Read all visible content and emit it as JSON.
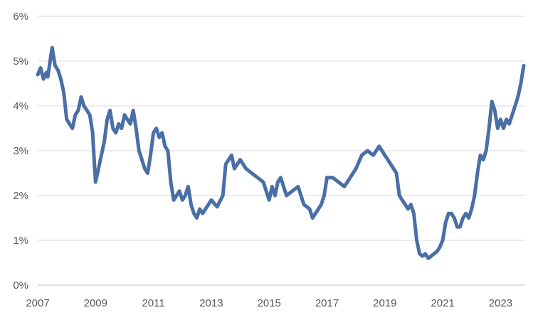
{
  "chart_data": {
    "type": "line",
    "title": "",
    "xlabel": "",
    "ylabel": "",
    "grid": true,
    "legend": "none",
    "xlim": [
      2007.0,
      2023.85
    ],
    "ylim": [
      0,
      6
    ],
    "x_ticks": [
      {
        "value": 2007,
        "label": "2007"
      },
      {
        "value": 2009,
        "label": "2009"
      },
      {
        "value": 2011,
        "label": "2011"
      },
      {
        "value": 2013,
        "label": "2013"
      },
      {
        "value": 2015,
        "label": "2015"
      },
      {
        "value": 2017,
        "label": "2017"
      },
      {
        "value": 2019,
        "label": "2019"
      },
      {
        "value": 2021,
        "label": "2021"
      },
      {
        "value": 2023,
        "label": "2023"
      }
    ],
    "y_ticks": [
      {
        "value": 0,
        "label": "0%"
      },
      {
        "value": 1,
        "label": "1%"
      },
      {
        "value": 2,
        "label": "2%"
      },
      {
        "value": 3,
        "label": "3%"
      },
      {
        "value": 4,
        "label": "4%"
      },
      {
        "value": 5,
        "label": "5%"
      },
      {
        "value": 6,
        "label": "6%"
      }
    ],
    "series": [
      {
        "color": "#4a6fa5",
        "x": [
          2007.0,
          2007.1,
          2007.2,
          2007.3,
          2007.35,
          2007.45,
          2007.5,
          2007.6,
          2007.7,
          2007.8,
          2007.9,
          2008.0,
          2008.1,
          2008.2,
          2008.3,
          2008.4,
          2008.5,
          2008.6,
          2008.7,
          2008.8,
          2008.9,
          2008.95,
          2009.0,
          2009.1,
          2009.2,
          2009.3,
          2009.4,
          2009.5,
          2009.6,
          2009.7,
          2009.8,
          2009.9,
          2010.0,
          2010.1,
          2010.2,
          2010.3,
          2010.4,
          2010.5,
          2010.6,
          2010.7,
          2010.8,
          2010.9,
          2011.0,
          2011.1,
          2011.2,
          2011.3,
          2011.4,
          2011.5,
          2011.6,
          2011.7,
          2011.8,
          2011.9,
          2012.0,
          2012.1,
          2012.2,
          2012.3,
          2012.4,
          2012.5,
          2012.6,
          2012.7,
          2012.8,
          2012.9,
          2013.0,
          2013.2,
          2013.4,
          2013.5,
          2013.6,
          2013.7,
          2013.8,
          2014.0,
          2014.2,
          2014.4,
          2014.6,
          2014.8,
          2015.0,
          2015.1,
          2015.2,
          2015.3,
          2015.4,
          2015.5,
          2015.6,
          2015.8,
          2016.0,
          2016.2,
          2016.4,
          2016.5,
          2016.6,
          2016.8,
          2016.9,
          2017.0,
          2017.2,
          2017.4,
          2017.6,
          2017.8,
          2018.0,
          2018.2,
          2018.4,
          2018.6,
          2018.8,
          2018.9,
          2019.0,
          2019.2,
          2019.4,
          2019.5,
          2019.6,
          2019.8,
          2019.9,
          2020.0,
          2020.1,
          2020.2,
          2020.3,
          2020.4,
          2020.5,
          2020.6,
          2020.7,
          2020.8,
          2020.9,
          2021.0,
          2021.1,
          2021.2,
          2021.3,
          2021.4,
          2021.5,
          2021.6,
          2021.7,
          2021.8,
          2021.9,
          2022.0,
          2022.1,
          2022.2,
          2022.3,
          2022.4,
          2022.5,
          2022.6,
          2022.7,
          2022.8,
          2022.9,
          2023.0,
          2023.1,
          2023.2,
          2023.3,
          2023.4,
          2023.5,
          2023.6,
          2023.7,
          2023.75,
          2023.8
        ],
        "y": [
          4.7,
          4.85,
          4.6,
          4.75,
          4.65,
          5.1,
          5.3,
          4.9,
          4.8,
          4.6,
          4.3,
          3.7,
          3.6,
          3.5,
          3.8,
          3.9,
          4.2,
          4.0,
          3.9,
          3.8,
          3.4,
          2.8,
          2.3,
          2.6,
          2.9,
          3.2,
          3.7,
          3.9,
          3.5,
          3.4,
          3.6,
          3.5,
          3.8,
          3.7,
          3.6,
          3.9,
          3.5,
          3.0,
          2.8,
          2.6,
          2.5,
          2.9,
          3.4,
          3.5,
          3.3,
          3.4,
          3.1,
          3.0,
          2.3,
          1.9,
          2.0,
          2.1,
          1.9,
          2.0,
          2.2,
          1.8,
          1.6,
          1.5,
          1.7,
          1.6,
          1.7,
          1.8,
          1.9,
          1.75,
          2.0,
          2.7,
          2.8,
          2.9,
          2.6,
          2.8,
          2.6,
          2.5,
          2.4,
          2.3,
          1.9,
          2.2,
          2.0,
          2.3,
          2.4,
          2.2,
          2.0,
          2.1,
          2.2,
          1.8,
          1.7,
          1.5,
          1.6,
          1.8,
          2.0,
          2.4,
          2.4,
          2.3,
          2.2,
          2.4,
          2.6,
          2.9,
          3.0,
          2.9,
          3.1,
          3.0,
          2.9,
          2.7,
          2.5,
          2.0,
          1.9,
          1.7,
          1.8,
          1.6,
          1.0,
          0.7,
          0.65,
          0.7,
          0.6,
          0.65,
          0.7,
          0.75,
          0.85,
          1.0,
          1.4,
          1.6,
          1.6,
          1.5,
          1.3,
          1.3,
          1.5,
          1.6,
          1.5,
          1.7,
          2.0,
          2.5,
          2.9,
          2.8,
          3.0,
          3.5,
          4.1,
          3.9,
          3.5,
          3.7,
          3.5,
          3.7,
          3.6,
          3.8,
          4.0,
          4.2,
          4.5,
          4.7,
          4.9
        ]
      }
    ]
  }
}
